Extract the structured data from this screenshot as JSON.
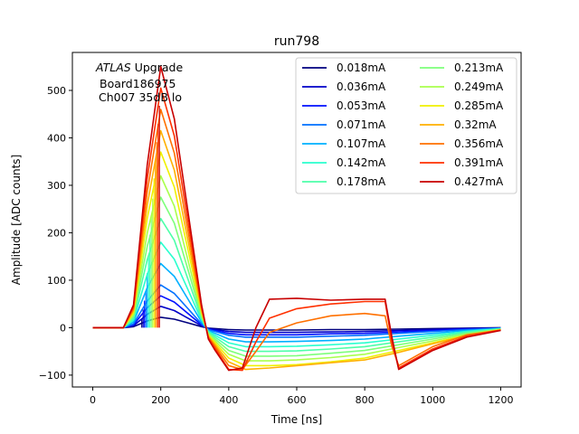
{
  "chart_data": {
    "type": "line",
    "title": "run798",
    "xlabel": "Time [ns]",
    "ylabel": "Amplitude [ADC counts]",
    "xlim": [
      -60,
      1260
    ],
    "ylim": [
      -125,
      580
    ],
    "xticks": [
      0,
      200,
      400,
      600,
      800,
      1000,
      1200
    ],
    "yticks": [
      -100,
      0,
      100,
      200,
      300,
      400,
      500
    ],
    "grid": false,
    "legend_placement": "top-right",
    "legend_columns": 2,
    "annotation": {
      "line1_italic": "ATLAS",
      "line1_rest": " Upgrade",
      "line2": "Board186975",
      "line3": "Ch007 35dB lo"
    },
    "series": [
      {
        "name": "0.018mA",
        "color": "#00007f",
        "peak": 22,
        "x": [
          0,
          90,
          120,
          160,
          200,
          240,
          280,
          320,
          340,
          360,
          400,
          450,
          520,
          600,
          700,
          800,
          900,
          1000,
          1100,
          1200
        ],
        "y": [
          0,
          0,
          2,
          14,
          22,
          18,
          10,
          2,
          -1,
          -2,
          -4,
          -5,
          -5,
          -5,
          -4,
          -4,
          -3,
          -2,
          -1,
          0
        ]
      },
      {
        "name": "0.036mA",
        "color": "#0000c8",
        "peak": 45,
        "x": [
          0,
          90,
          120,
          160,
          200,
          240,
          280,
          320,
          340,
          360,
          400,
          450,
          520,
          600,
          700,
          800,
          900,
          1000,
          1100,
          1200
        ],
        "y": [
          0,
          0,
          4,
          28,
          45,
          36,
          20,
          4,
          -2,
          -4,
          -8,
          -10,
          -10,
          -10,
          -9,
          -8,
          -6,
          -4,
          -2,
          -1
        ]
      },
      {
        "name": "0.053mA",
        "color": "#0010ff",
        "peak": 67,
        "x": [
          0,
          90,
          120,
          160,
          200,
          240,
          280,
          320,
          340,
          360,
          400,
          450,
          520,
          600,
          700,
          800,
          900,
          1000,
          1100,
          1200
        ],
        "y": [
          0,
          0,
          6,
          42,
          67,
          54,
          30,
          6,
          -3,
          -6,
          -12,
          -15,
          -15,
          -15,
          -13,
          -12,
          -9,
          -6,
          -3,
          -1
        ]
      },
      {
        "name": "0.071mA",
        "color": "#0070ff",
        "peak": 90,
        "x": [
          0,
          90,
          120,
          160,
          200,
          240,
          280,
          320,
          340,
          360,
          400,
          450,
          520,
          600,
          700,
          800,
          900,
          1000,
          1100,
          1200
        ],
        "y": [
          0,
          0,
          8,
          56,
          90,
          72,
          40,
          8,
          -4,
          -8,
          -16,
          -20,
          -20,
          -20,
          -18,
          -16,
          -12,
          -8,
          -4,
          -1
        ]
      },
      {
        "name": "0.107mA",
        "color": "#00b0ff",
        "peak": 135,
        "x": [
          0,
          90,
          120,
          160,
          200,
          240,
          280,
          320,
          340,
          360,
          400,
          450,
          520,
          600,
          700,
          800,
          900,
          1000,
          1100,
          1200
        ],
        "y": [
          0,
          0,
          12,
          84,
          135,
          108,
          60,
          12,
          -6,
          -12,
          -24,
          -30,
          -30,
          -29,
          -27,
          -24,
          -18,
          -12,
          -6,
          -2
        ]
      },
      {
        "name": "0.142mA",
        "color": "#29ffce",
        "peak": 180,
        "x": [
          0,
          90,
          120,
          160,
          200,
          240,
          280,
          320,
          340,
          360,
          400,
          450,
          520,
          600,
          700,
          800,
          900,
          1000,
          1100,
          1200
        ],
        "y": [
          0,
          0,
          16,
          112,
          180,
          144,
          80,
          16,
          -8,
          -16,
          -32,
          -40,
          -40,
          -39,
          -36,
          -32,
          -24,
          -16,
          -8,
          -2
        ]
      },
      {
        "name": "0.178mA",
        "color": "#4dffa9",
        "peak": 230,
        "x": [
          0,
          90,
          120,
          160,
          200,
          240,
          280,
          320,
          340,
          360,
          400,
          450,
          520,
          600,
          700,
          800,
          900,
          1000,
          1100,
          1200
        ],
        "y": [
          0,
          0,
          20,
          143,
          230,
          184,
          102,
          20,
          -10,
          -20,
          -40,
          -50,
          -50,
          -49,
          -45,
          -40,
          -30,
          -20,
          -10,
          -3
        ]
      },
      {
        "name": "0.213mA",
        "color": "#7dff7a",
        "peak": 275,
        "x": [
          0,
          90,
          120,
          160,
          200,
          240,
          280,
          320,
          340,
          360,
          400,
          450,
          520,
          600,
          700,
          800,
          900,
          1000,
          1100,
          1200
        ],
        "y": [
          0,
          0,
          24,
          171,
          275,
          220,
          122,
          24,
          -12,
          -24,
          -48,
          -60,
          -60,
          -59,
          -54,
          -48,
          -36,
          -24,
          -12,
          -3
        ]
      },
      {
        "name": "0.249mA",
        "color": "#a9ff4d",
        "peak": 320,
        "x": [
          0,
          90,
          120,
          160,
          200,
          240,
          280,
          320,
          340,
          360,
          400,
          450,
          520,
          600,
          700,
          800,
          900,
          1000,
          1100,
          1200
        ],
        "y": [
          0,
          0,
          28,
          199,
          320,
          256,
          142,
          28,
          -14,
          -28,
          -56,
          -70,
          -70,
          -68,
          -63,
          -56,
          -42,
          -28,
          -14,
          -4
        ]
      },
      {
        "name": "0.285mA",
        "color": "#f0f000",
        "peak": 370,
        "x": [
          0,
          90,
          120,
          160,
          200,
          240,
          280,
          320,
          340,
          360,
          400,
          450,
          520,
          600,
          700,
          800,
          900,
          1000,
          1100,
          1200
        ],
        "y": [
          0,
          0,
          32,
          230,
          370,
          296,
          164,
          32,
          -16,
          -32,
          -64,
          -80,
          -80,
          -78,
          -72,
          -64,
          -48,
          -32,
          -16,
          -4
        ]
      },
      {
        "name": "0.32mA",
        "color": "#ffb000",
        "peak": 415,
        "x": [
          0,
          90,
          120,
          160,
          200,
          240,
          280,
          320,
          340,
          360,
          400,
          450,
          520,
          600,
          700,
          800,
          900,
          1000,
          1100,
          1200
        ],
        "y": [
          0,
          0,
          36,
          258,
          415,
          332,
          184,
          36,
          -18,
          -36,
          -72,
          -88,
          -85,
          -80,
          -74,
          -68,
          -52,
          -34,
          -17,
          -5
        ]
      },
      {
        "name": "0.356mA",
        "color": "#ff7000",
        "peak": 460,
        "x": [
          0,
          90,
          120,
          160,
          200,
          240,
          280,
          320,
          340,
          360,
          400,
          440,
          480,
          520,
          600,
          700,
          800,
          860,
          880,
          900,
          1000,
          1100,
          1200
        ],
        "y": [
          0,
          0,
          40,
          286,
          460,
          368,
          204,
          40,
          -20,
          -40,
          -80,
          -88,
          -50,
          -10,
          10,
          25,
          30,
          25,
          -40,
          -80,
          -40,
          -15,
          -5
        ]
      },
      {
        "name": "0.391mA",
        "color": "#ff3000",
        "peak": 505,
        "x": [
          0,
          90,
          120,
          160,
          200,
          240,
          280,
          320,
          340,
          360,
          400,
          440,
          480,
          520,
          600,
          700,
          800,
          860,
          880,
          900,
          1000,
          1100,
          1200
        ],
        "y": [
          0,
          0,
          44,
          314,
          505,
          404,
          224,
          44,
          -22,
          -44,
          -88,
          -90,
          -30,
          20,
          40,
          50,
          55,
          55,
          -30,
          -85,
          -45,
          -18,
          -5
        ]
      },
      {
        "name": "0.427mA",
        "color": "#c80000",
        "peak": 550,
        "x": [
          0,
          90,
          120,
          160,
          200,
          240,
          280,
          320,
          340,
          360,
          400,
          440,
          480,
          520,
          600,
          700,
          800,
          860,
          880,
          900,
          1000,
          1100,
          1200
        ],
        "y": [
          0,
          0,
          48,
          342,
          550,
          440,
          244,
          48,
          -24,
          -48,
          -90,
          -85,
          0,
          60,
          62,
          58,
          60,
          60,
          -20,
          -88,
          -48,
          -20,
          -6
        ]
      }
    ]
  }
}
